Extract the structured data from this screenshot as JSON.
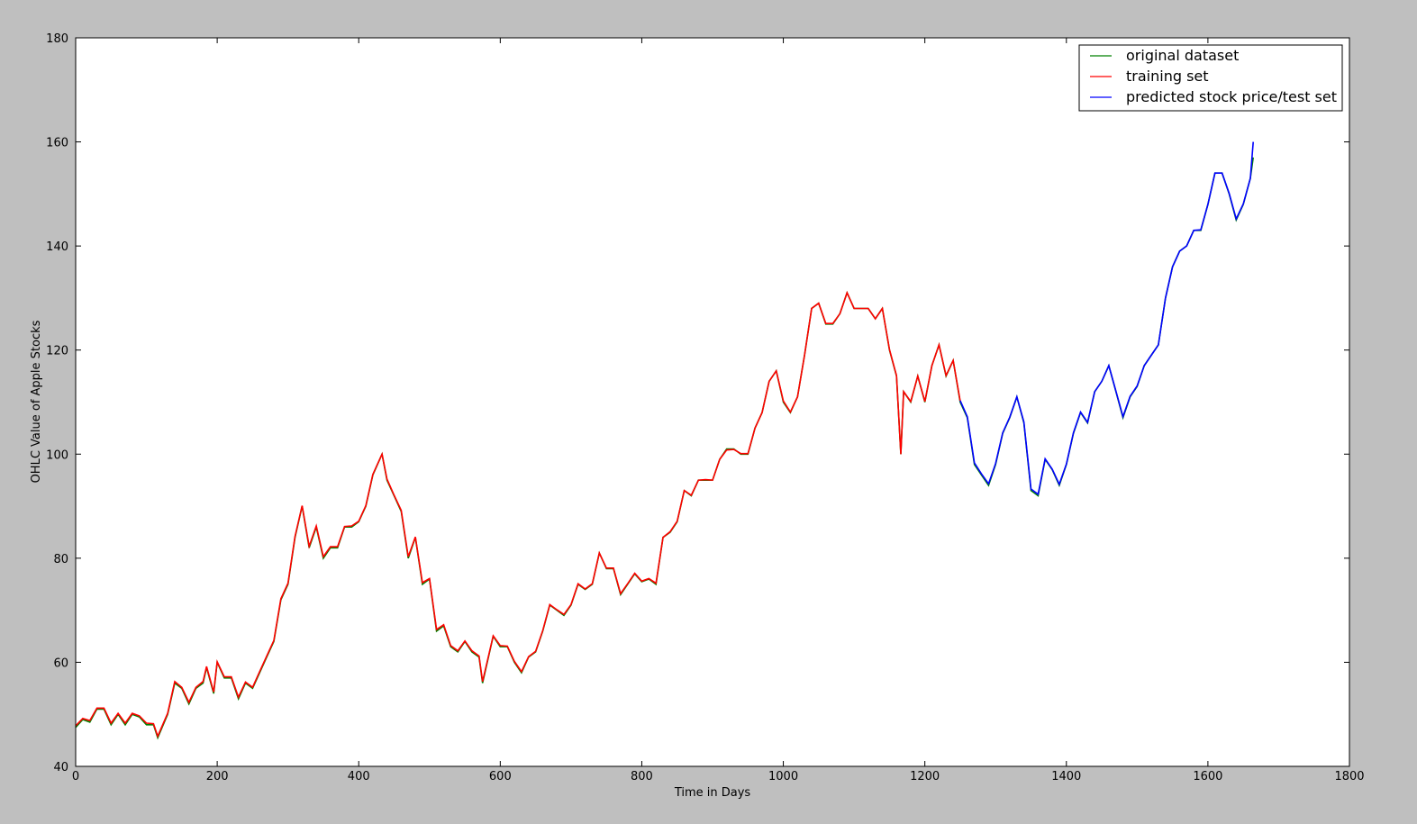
{
  "chart_data": {
    "type": "line",
    "xlabel": "Time in Days",
    "ylabel": "OHLC Value of Apple Stocks",
    "xlim": [
      0,
      1800
    ],
    "xticks": [
      0,
      200,
      400,
      600,
      800,
      1000,
      1200,
      1400,
      1600,
      1800
    ],
    "ylim": [
      40,
      180
    ],
    "yticks": [
      40,
      60,
      80,
      100,
      120,
      140,
      160,
      180
    ],
    "legend": "upper right",
    "series": [
      {
        "name": "original dataset",
        "color": "#008000",
        "x": [
          0,
          10,
          20,
          30,
          40,
          50,
          60,
          70,
          80,
          90,
          100,
          110,
          116,
          130,
          140,
          150,
          160,
          170,
          180,
          185,
          195,
          200,
          210,
          220,
          230,
          240,
          250,
          260,
          270,
          280,
          290,
          300,
          310,
          320,
          330,
          340,
          350,
          360,
          370,
          380,
          390,
          400,
          410,
          420,
          433,
          440,
          450,
          460,
          470,
          480,
          490,
          500,
          510,
          520,
          530,
          540,
          550,
          560,
          570,
          575,
          590,
          600,
          610,
          620,
          630,
          640,
          650,
          660,
          670,
          680,
          690,
          700,
          710,
          720,
          730,
          740,
          750,
          760,
          770,
          780,
          790,
          800,
          810,
          820,
          830,
          840,
          850,
          860,
          870,
          880,
          890,
          900,
          910,
          920,
          930,
          940,
          950,
          960,
          970,
          980,
          990,
          1000,
          1010,
          1020,
          1030,
          1040,
          1050,
          1060,
          1070,
          1080,
          1090,
          1100,
          1110,
          1120,
          1130,
          1140,
          1150,
          1160,
          1166,
          1170,
          1180,
          1190,
          1200,
          1210,
          1220,
          1230,
          1240,
          1250,
          1260,
          1270,
          1280,
          1290,
          1300,
          1310,
          1320,
          1330,
          1340,
          1350,
          1360,
          1370,
          1380,
          1390,
          1400,
          1410,
          1420,
          1430,
          1440,
          1450,
          1460,
          1470,
          1480,
          1490,
          1500,
          1510,
          1520,
          1530,
          1540,
          1550,
          1560,
          1570,
          1580,
          1590,
          1600,
          1610,
          1620,
          1630,
          1640,
          1650,
          1660,
          1664
        ],
        "values": [
          47.5,
          49,
          48.5,
          51,
          51,
          48,
          50,
          48,
          50,
          49.5,
          48,
          48,
          45.5,
          50,
          56,
          55,
          52,
          55,
          56,
          59,
          54,
          60,
          57,
          57,
          53,
          56,
          55,
          58,
          61,
          64,
          72,
          75,
          84,
          90,
          82,
          86,
          80,
          82,
          82,
          86,
          86,
          87,
          90,
          96,
          100,
          95,
          92,
          89,
          80,
          84,
          75,
          76,
          66,
          67,
          63,
          62,
          64,
          62,
          61,
          56,
          65,
          63,
          63,
          60,
          58,
          61,
          62,
          66,
          71,
          70,
          69,
          71,
          75,
          74,
          75,
          81,
          78,
          78,
          73,
          75,
          77,
          75.5,
          76,
          75,
          84,
          85,
          87,
          93,
          92,
          95,
          95,
          95,
          99,
          101,
          101,
          100,
          100,
          105,
          108,
          114,
          116,
          110,
          108,
          111,
          119,
          128,
          129,
          125,
          125,
          127,
          131,
          128,
          128,
          128,
          126,
          128,
          120,
          115,
          100,
          112,
          110,
          115,
          110,
          117,
          121,
          115,
          118,
          110,
          107,
          98,
          96,
          94,
          98,
          104,
          107,
          111,
          106,
          93,
          92,
          99,
          97,
          94,
          98,
          104,
          108,
          106,
          112,
          114,
          117,
          112,
          107,
          111,
          113,
          117,
          119,
          121,
          130,
          136,
          139,
          140,
          143,
          143,
          148,
          154,
          154,
          150,
          145,
          148,
          153,
          157
        ]
      },
      {
        "name": "training set",
        "color": "#ff0000",
        "x": [
          0,
          10,
          20,
          30,
          40,
          50,
          60,
          70,
          80,
          90,
          100,
          110,
          116,
          130,
          140,
          150,
          160,
          170,
          180,
          185,
          195,
          200,
          210,
          220,
          230,
          240,
          250,
          260,
          270,
          280,
          290,
          300,
          310,
          320,
          330,
          340,
          350,
          360,
          370,
          380,
          390,
          400,
          410,
          420,
          433,
          440,
          450,
          460,
          470,
          480,
          490,
          500,
          510,
          520,
          530,
          540,
          550,
          560,
          570,
          575,
          590,
          600,
          610,
          620,
          630,
          640,
          650,
          660,
          670,
          680,
          690,
          700,
          710,
          720,
          730,
          740,
          750,
          760,
          770,
          780,
          790,
          800,
          810,
          820,
          830,
          840,
          850,
          860,
          870,
          880,
          890,
          900,
          910,
          920,
          930,
          940,
          950,
          960,
          970,
          980,
          990,
          1000,
          1010,
          1020,
          1030,
          1040,
          1050,
          1060,
          1070,
          1080,
          1090,
          1100,
          1110,
          1120,
          1130,
          1140,
          1150,
          1160,
          1166,
          1170,
          1180,
          1190,
          1200,
          1210,
          1220,
          1230,
          1240,
          1250
        ],
        "values": [
          47.8,
          49.2,
          48.8,
          51.2,
          51.2,
          48.3,
          50.2,
          48.3,
          50.2,
          49.7,
          48.3,
          48.2,
          45.8,
          50.2,
          56.3,
          55.2,
          52.3,
          55.2,
          56.3,
          59.2,
          54.3,
          60.1,
          57.2,
          57.2,
          53.3,
          56.2,
          55.2,
          58.2,
          61.2,
          64.2,
          72.2,
          75.2,
          84.2,
          90.1,
          82.3,
          86.2,
          80.3,
          82.2,
          82.2,
          86.1,
          86.2,
          87.1,
          90.1,
          96.1,
          100,
          95.2,
          92.1,
          89.2,
          80.3,
          84.1,
          75.3,
          76.1,
          66.3,
          67.2,
          63.2,
          62.2,
          64.1,
          62.2,
          61.2,
          56.3,
          65.1,
          63.2,
          63.1,
          60.2,
          58.2,
          61.1,
          62.1,
          66.1,
          71.1,
          70.1,
          69.2,
          71.1,
          75.1,
          74.1,
          75.1,
          81,
          78.1,
          78.1,
          73.2,
          75.1,
          77.1,
          75.6,
          76.1,
          75.2,
          84,
          85.1,
          87.1,
          93,
          92.1,
          95,
          95.1,
          95,
          99,
          100.8,
          100.9,
          100.1,
          100.1,
          105,
          108,
          114,
          116,
          110.2,
          108.1,
          111,
          119,
          128,
          129,
          125.1,
          125.1,
          127,
          131,
          128,
          128,
          128,
          126,
          128,
          120.1,
          115.1,
          100,
          112,
          110.1,
          115,
          110.1,
          117,
          121,
          115.1,
          118,
          110.2
        ]
      },
      {
        "name": "predicted stock price/test set",
        "color": "#0000ff",
        "x": [
          1250,
          1260,
          1270,
          1280,
          1290,
          1300,
          1310,
          1320,
          1330,
          1340,
          1350,
          1360,
          1370,
          1380,
          1390,
          1400,
          1410,
          1420,
          1430,
          1440,
          1450,
          1460,
          1470,
          1480,
          1490,
          1500,
          1510,
          1520,
          1530,
          1540,
          1550,
          1560,
          1570,
          1580,
          1590,
          1600,
          1610,
          1620,
          1630,
          1640,
          1650,
          1660,
          1664
        ],
        "values": [
          110.3,
          107.2,
          98.3,
          96.2,
          94.3,
          98.2,
          104.1,
          107.1,
          111,
          106.2,
          93.3,
          92.3,
          99.1,
          97.1,
          94.2,
          98.1,
          104.1,
          108.1,
          106.1,
          112,
          114,
          117,
          112.1,
          107.2,
          111.1,
          113.1,
          117,
          119,
          121,
          130,
          136,
          139,
          140,
          143,
          143.1,
          148,
          154,
          154,
          150.1,
          145.2,
          148.1,
          153,
          160
        ]
      }
    ]
  }
}
